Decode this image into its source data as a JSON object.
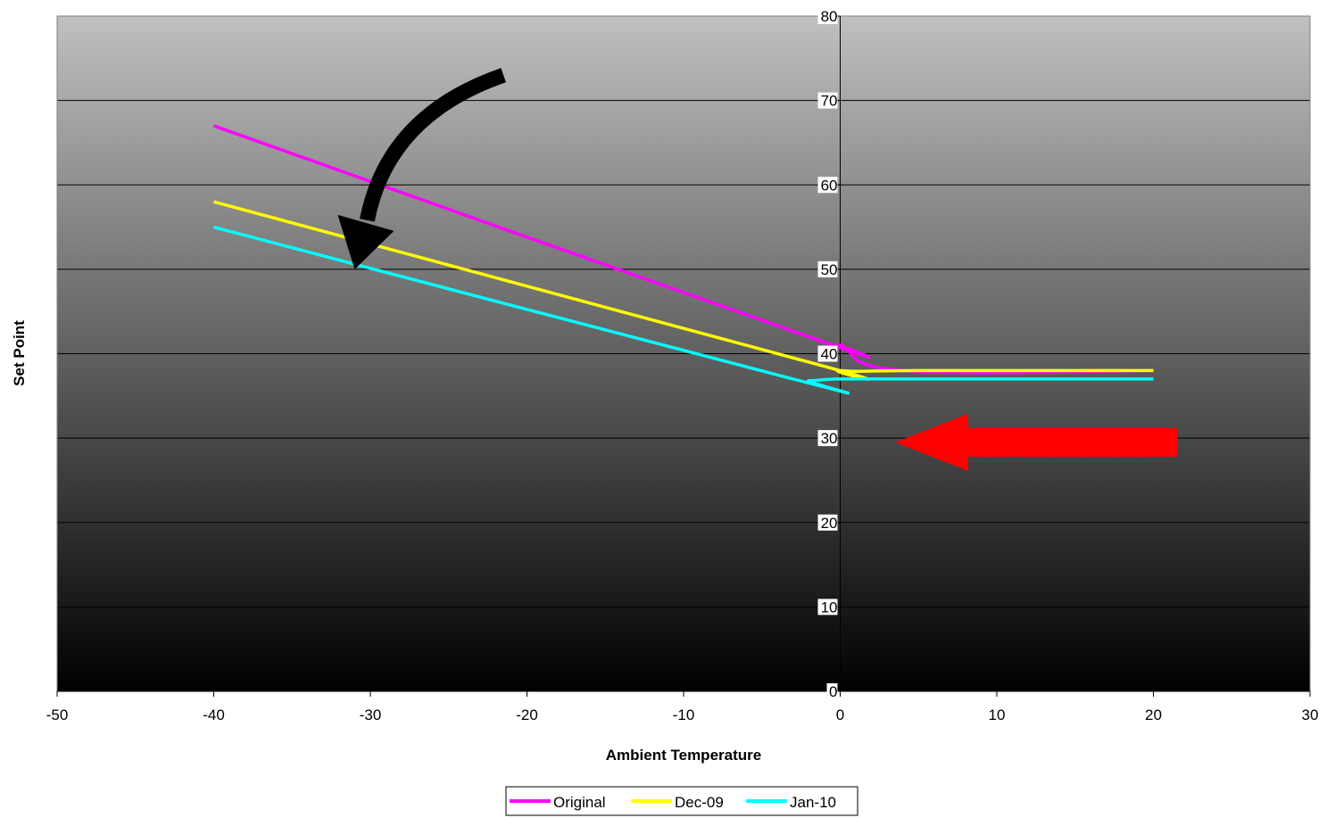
{
  "chart_data": {
    "type": "line",
    "xlabel": "Ambient Temperature",
    "ylabel": "Set Point",
    "xlim": [
      -50,
      30
    ],
    "ylim": [
      0,
      80
    ],
    "x_ticks": [
      -50,
      -40,
      -30,
      -20,
      -10,
      0,
      10,
      20,
      30
    ],
    "y_ticks": [
      0,
      10,
      20,
      30,
      40,
      50,
      60,
      70,
      80
    ],
    "y_axis_crosses_at_x": 0,
    "grid": "horizontal",
    "background": "gradient gray (light top, black bottom)",
    "legend_position": "bottom-center",
    "smoothed_lines": true,
    "series": [
      {
        "name": "Original",
        "color": "#ff00ff",
        "points": [
          [
            -40,
            67
          ],
          [
            -2,
            42
          ],
          [
            0,
            41
          ],
          [
            4,
            38
          ],
          [
            20,
            38
          ]
        ]
      },
      {
        "name": "Dec-09",
        "color": "#ffff00",
        "points": [
          [
            -40,
            58
          ],
          [
            -2,
            39
          ],
          [
            0,
            38
          ],
          [
            5,
            38
          ],
          [
            20,
            38
          ]
        ]
      },
      {
        "name": "Jan-10",
        "color": "#00ffff",
        "points": [
          [
            -40,
            55
          ],
          [
            -3,
            37
          ],
          [
            -2,
            36.8
          ],
          [
            0,
            37
          ],
          [
            5,
            37
          ],
          [
            20,
            37
          ]
        ]
      }
    ],
    "annotations": [
      {
        "type": "curved-arrow",
        "color": "#000000",
        "direction": "down-left",
        "from": [
          -21.5,
          73
        ],
        "to": [
          -31,
          50
        ]
      },
      {
        "type": "block-arrow",
        "color": "#ff0000",
        "direction": "left",
        "from": [
          21.5,
          29.5
        ],
        "to": [
          3.5,
          29.5
        ]
      }
    ]
  }
}
